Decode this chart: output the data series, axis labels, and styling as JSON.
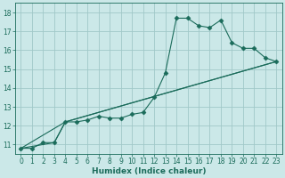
{
  "xlabel": "Humidex (Indice chaleur)",
  "bg_color": "#cbe8e8",
  "grid_color": "#a0c8c8",
  "line_color": "#1a6b5a",
  "marker": "D",
  "markersize": 2.5,
  "xlim": [
    -0.5,
    23.5
  ],
  "ylim": [
    10.5,
    18.5
  ],
  "xticks": [
    0,
    1,
    2,
    3,
    4,
    5,
    6,
    7,
    8,
    9,
    10,
    11,
    12,
    13,
    14,
    15,
    16,
    17,
    18,
    19,
    20,
    21,
    22,
    23
  ],
  "yticks": [
    11,
    12,
    13,
    14,
    15,
    16,
    17,
    18
  ],
  "line1_x": [
    0,
    1,
    2,
    3,
    4,
    5,
    6,
    7,
    8,
    9,
    10,
    11,
    12,
    13,
    14,
    15,
    16,
    17,
    18,
    19,
    20,
    21,
    22,
    23
  ],
  "line1_y": [
    10.8,
    10.8,
    11.1,
    11.1,
    12.2,
    12.2,
    12.3,
    12.5,
    12.4,
    12.4,
    12.6,
    12.7,
    13.5,
    14.8,
    17.7,
    17.7,
    17.3,
    17.2,
    17.6,
    16.4,
    16.1,
    16.1,
    15.6,
    15.4
  ],
  "line2_x": [
    0,
    3,
    4,
    23
  ],
  "line2_y": [
    10.8,
    11.1,
    12.2,
    15.4
  ],
  "line3_x": [
    0,
    4,
    23
  ],
  "line3_y": [
    10.8,
    12.2,
    15.4
  ],
  "xlabel_fontsize": 6.5,
  "tick_fontsize": 5.5
}
